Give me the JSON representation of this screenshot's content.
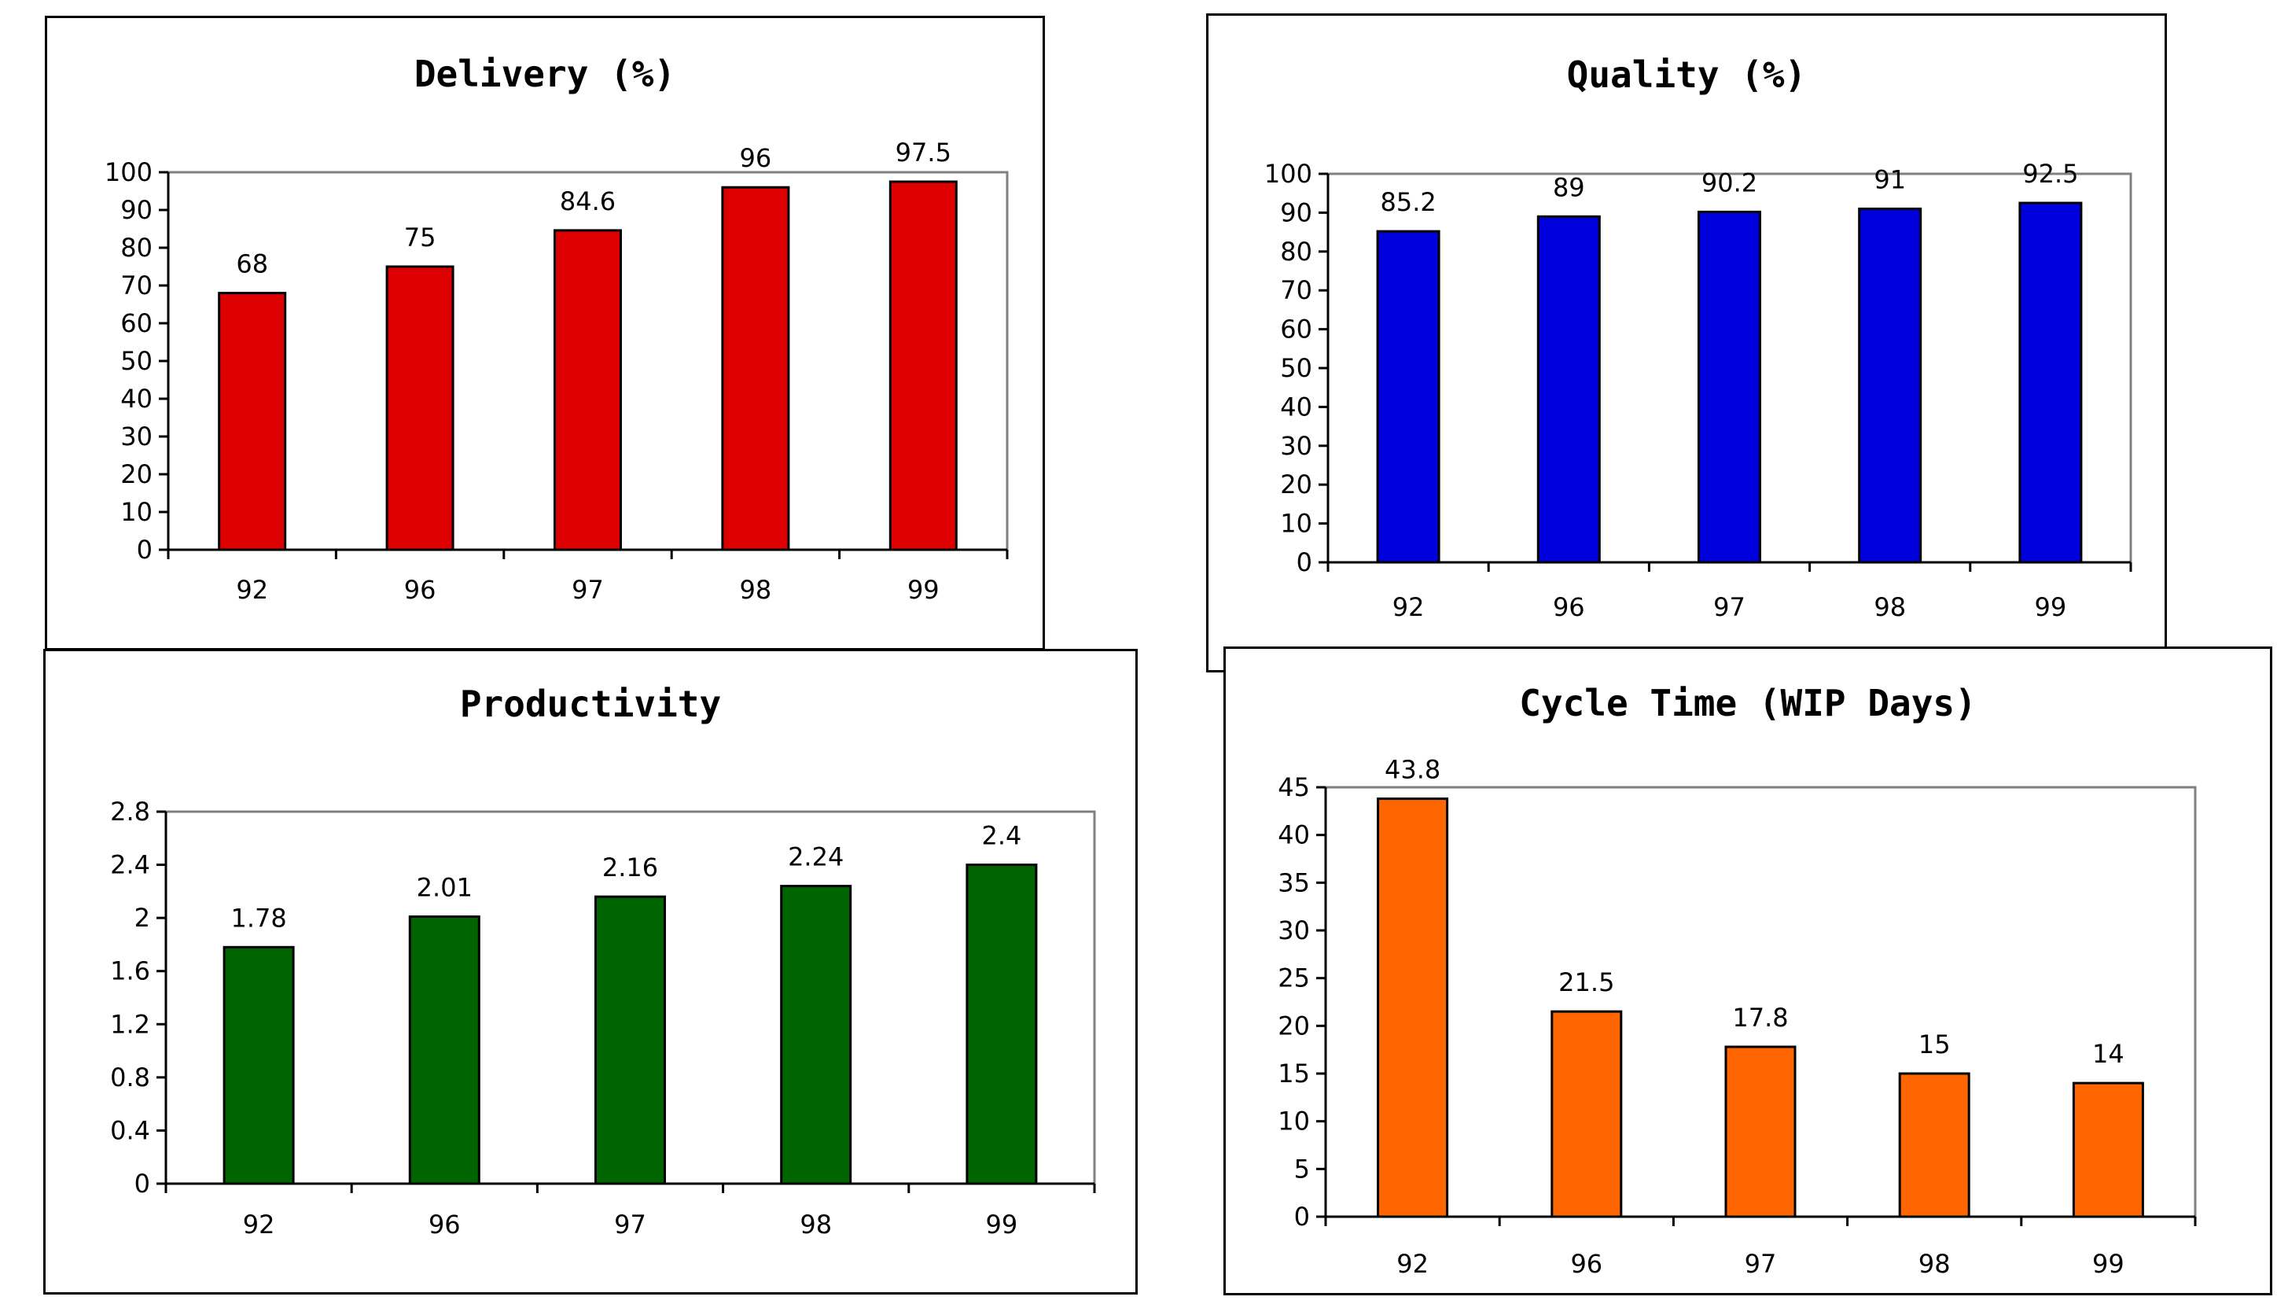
{
  "chart_data": [
    {
      "id": "delivery",
      "type": "bar",
      "title": "Delivery (%)",
      "xlabel": "",
      "ylabel": "",
      "categories": [
        "92",
        "96",
        "97",
        "98",
        "99"
      ],
      "values": [
        68,
        75,
        84.6,
        96,
        97.5
      ],
      "data_labels": [
        "68",
        "75",
        "84.6",
        "96",
        "97.5"
      ],
      "ylim": [
        0,
        100
      ],
      "yticks": [
        0,
        10,
        20,
        30,
        40,
        50,
        60,
        70,
        80,
        90,
        100
      ],
      "ytick_labels": [
        "0",
        "10",
        "20",
        "30",
        "40",
        "50",
        "60",
        "70",
        "80",
        "90",
        "100"
      ],
      "grid": false,
      "legend": "none",
      "bar_color": "#dd0000"
    },
    {
      "id": "quality",
      "type": "bar",
      "title": "Quality (%)",
      "xlabel": "",
      "ylabel": "",
      "categories": [
        "92",
        "96",
        "97",
        "98",
        "99"
      ],
      "values": [
        85.2,
        89,
        90.2,
        91,
        92.5
      ],
      "data_labels": [
        "85.2",
        "89",
        "90.2",
        "91",
        "92.5"
      ],
      "ylim": [
        0,
        100
      ],
      "yticks": [
        0,
        10,
        20,
        30,
        40,
        50,
        60,
        70,
        80,
        90,
        100
      ],
      "ytick_labels": [
        "0",
        "10",
        "20",
        "30",
        "40",
        "50",
        "60",
        "70",
        "80",
        "90",
        "100"
      ],
      "grid": false,
      "legend": "none",
      "bar_color": "#0000dd"
    },
    {
      "id": "productivity",
      "type": "bar",
      "title": "Productivity",
      "xlabel": "",
      "ylabel": "",
      "categories": [
        "92",
        "96",
        "97",
        "98",
        "99"
      ],
      "values": [
        1.78,
        2.01,
        2.16,
        2.24,
        2.4
      ],
      "data_labels": [
        "1.78",
        "2.01",
        "2.16",
        "2.24",
        "2.4"
      ],
      "ylim": [
        0,
        2.8
      ],
      "yticks": [
        0,
        0.4,
        0.8,
        1.2,
        1.6,
        2,
        2.4,
        2.8
      ],
      "ytick_labels": [
        "0",
        "0.4",
        "0.8",
        "1.2",
        "1.6",
        "2",
        "2.4",
        "2.8"
      ],
      "grid": false,
      "legend": "none",
      "bar_color": "#006400"
    },
    {
      "id": "cycle",
      "type": "bar",
      "title": "Cycle Time (WIP Days)",
      "xlabel": "",
      "ylabel": "",
      "categories": [
        "92",
        "96",
        "97",
        "98",
        "99"
      ],
      "values": [
        43.8,
        21.5,
        17.8,
        15,
        14
      ],
      "data_labels": [
        "43.8",
        "21.5",
        "17.8",
        "15",
        "14"
      ],
      "ylim": [
        0,
        45
      ],
      "yticks": [
        0,
        5,
        10,
        15,
        20,
        25,
        30,
        35,
        40,
        45
      ],
      "ytick_labels": [
        "0",
        "5",
        "10",
        "15",
        "20",
        "25",
        "30",
        "35",
        "40",
        "45"
      ],
      "grid": false,
      "legend": "none",
      "bar_color": "#ff6600"
    }
  ]
}
